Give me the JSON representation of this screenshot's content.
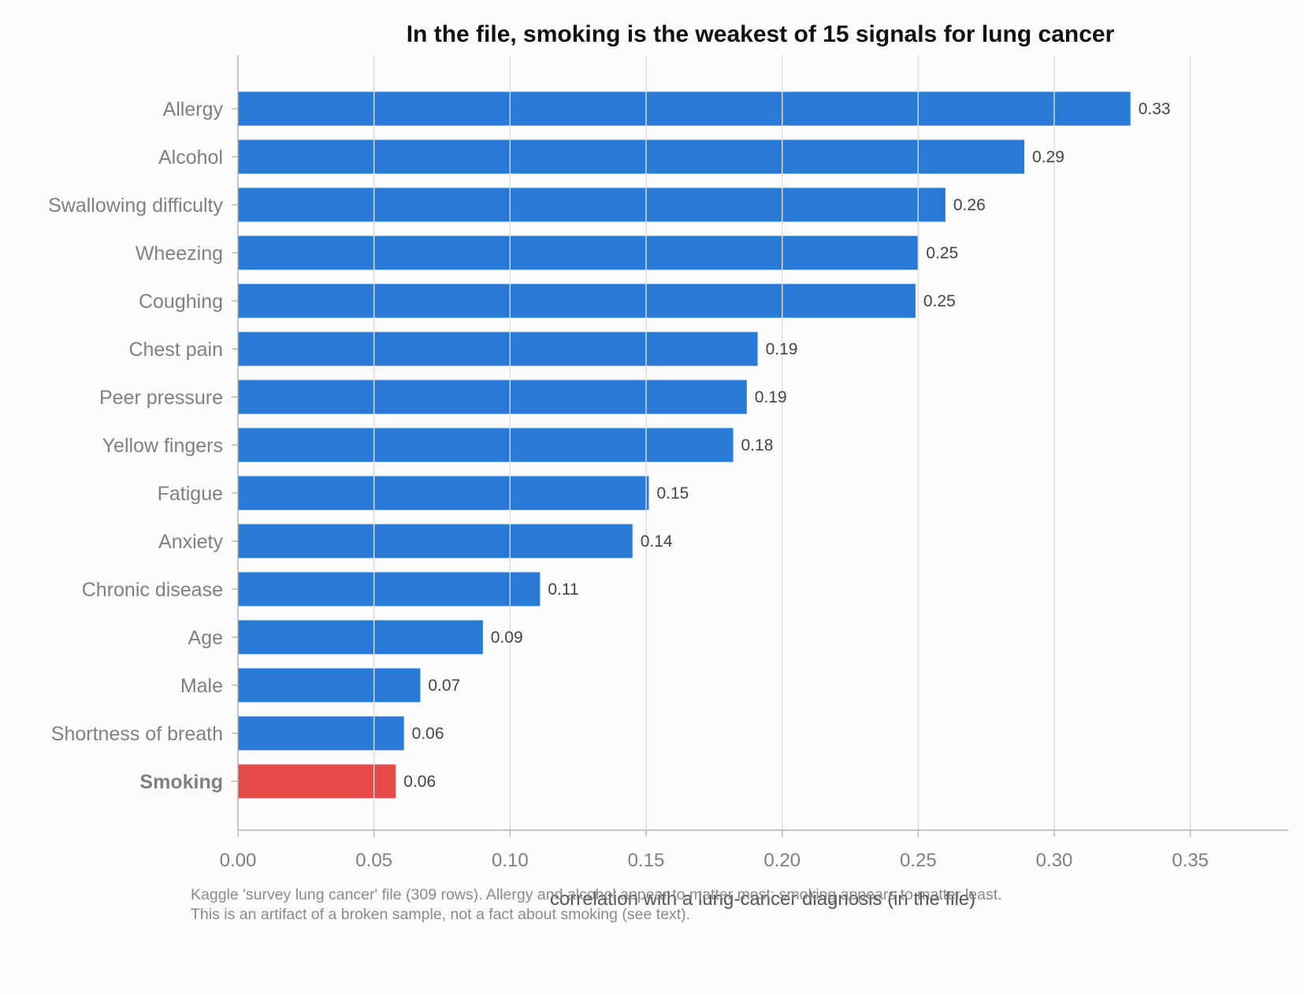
{
  "chart_data": {
    "type": "bar",
    "orientation": "horizontal",
    "title": "In the file, smoking is the weakest of 15 signals for lung cancer",
    "xlabel": "correlation with a lung-cancer diagnosis (in the file)",
    "ylabel": "",
    "xlim": [
      0,
      0.386
    ],
    "xticks": [
      0.0,
      0.05,
      0.1,
      0.15,
      0.2,
      0.25,
      0.3,
      0.35
    ],
    "xtick_labels": [
      "0.00",
      "0.05",
      "0.10",
      "0.15",
      "0.20",
      "0.25",
      "0.30",
      "0.35"
    ],
    "grid": "vertical",
    "categories": [
      "Allergy",
      "Alcohol",
      "Swallowing difficulty",
      "Wheezing",
      "Coughing",
      "Chest pain",
      "Peer pressure",
      "Yellow fingers",
      "Fatigue",
      "Anxiety",
      "Chronic disease",
      "Age",
      "Male",
      "Shortness of breath",
      "Smoking"
    ],
    "values": [
      0.328,
      0.289,
      0.26,
      0.25,
      0.249,
      0.191,
      0.187,
      0.182,
      0.151,
      0.145,
      0.111,
      0.09,
      0.067,
      0.061,
      0.058
    ],
    "value_labels": [
      "0.33",
      "0.29",
      "0.26",
      "0.25",
      "0.25",
      "0.19",
      "0.19",
      "0.18",
      "0.15",
      "0.14",
      "0.11",
      "0.09",
      "0.07",
      "0.06",
      "0.06"
    ],
    "highlight": "Smoking",
    "colors": {
      "bar": "#2979d6",
      "highlight": "#e34a48"
    }
  },
  "caption": {
    "line1": "Kaggle 'survey lung cancer' file (309 rows). Allergy and alcohol appear to matter most; smoking appears to matter least.",
    "line2": "This is an artifact of a broken sample, not a fact about smoking (see text)."
  }
}
